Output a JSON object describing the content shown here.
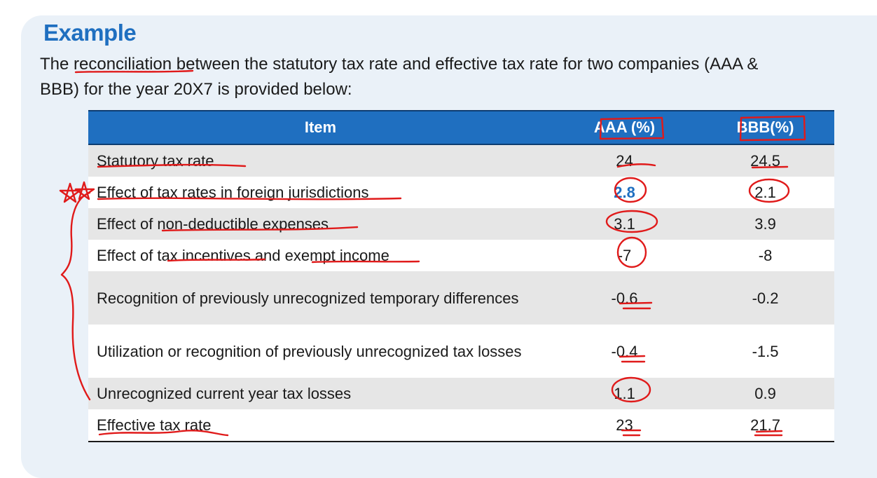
{
  "title": "Example",
  "intro": {
    "line1": "The reconciliation between the statutory tax rate and effective tax rate for two companies (AAA &",
    "line2": "BBB) for the year 20X7 is provided below:"
  },
  "table": {
    "headers": [
      "Item",
      "AAA (%)",
      "BBB(%)"
    ],
    "rows": [
      {
        "item": "Statutory tax rate",
        "aaa": "24",
        "bbb": "24.5"
      },
      {
        "item": "Effect of tax rates in foreign jurisdictions",
        "aaa": "2.8",
        "bbb": "2.1"
      },
      {
        "item": "Effect of non-deductible expenses",
        "aaa": "3.1",
        "bbb": "3.9"
      },
      {
        "item": "Effect of tax incentives and exempt income",
        "aaa": "-7",
        "bbb": "-8"
      },
      {
        "item": "Recognition of previously unrecognized temporary differences",
        "aaa": "-0.6",
        "bbb": "-0.2"
      },
      {
        "item": "Utilization or recognition of previously unrecognized tax losses",
        "aaa": "-0.4",
        "bbb": "-1.5"
      },
      {
        "item": "Unrecognized current year tax losses",
        "aaa": "1.1",
        "bbb": "0.9"
      },
      {
        "item": "Effective tax rate",
        "aaa": "23",
        "bbb": "21.7"
      }
    ]
  },
  "colors": {
    "accent": "#1f6fc0",
    "annotation": "#e01a1a",
    "row_shade": "#e6e6e6",
    "panel": "#eaf1f8"
  }
}
